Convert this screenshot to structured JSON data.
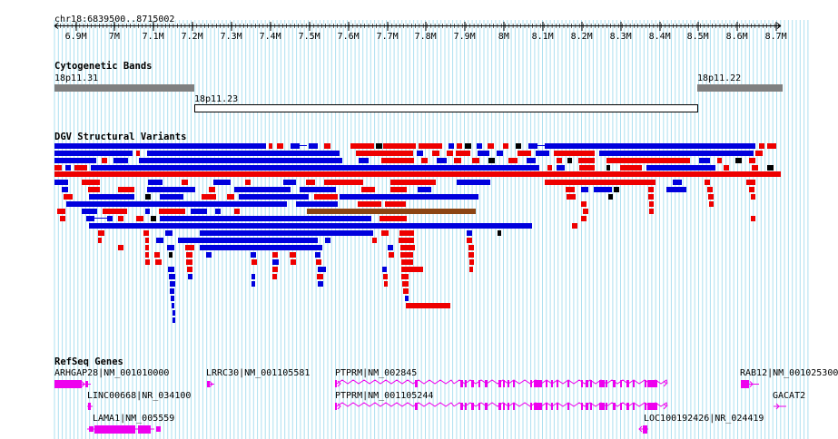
{
  "ruler": {
    "coord_label": "chr18:6839500..8715002",
    "ticks": [
      "6.9M",
      "7M",
      "7.1M",
      "7.2M",
      "7.3M",
      "7.4M",
      "7.5M",
      "7.6M",
      "7.7M",
      "7.8M",
      "7.9M",
      "8M",
      "8.1M",
      "8.2M",
      "8.3M",
      "8.4M",
      "8.5M",
      "8.6M",
      "8.7M"
    ]
  },
  "tracks": {
    "cytoband": {
      "title": "Cytogenetic Bands",
      "bands": [
        {
          "label": "18p11.31"
        },
        {
          "label": "18p11.23"
        },
        {
          "label": "18p11.22"
        }
      ]
    },
    "dgv": {
      "title": "DGV Structural Variants"
    },
    "refseq": {
      "title": "RefSeq Genes",
      "genes": [
        {
          "label": "ARHGAP28|NM_001010000"
        },
        {
          "label": "LINC00668|NR_034100"
        },
        {
          "label": "LAMA1|NM_005559"
        },
        {
          "label": "LRRC30|NM_001105581"
        },
        {
          "label": "PTPRM|NM_002845"
        },
        {
          "label": "PTPRM|NM_001105244"
        },
        {
          "label": "LOC100192426|NR_024419"
        },
        {
          "label": "RAB12|NM_001025300"
        },
        {
          "label": "GACAT2"
        }
      ]
    }
  },
  "colors": {
    "gain": "#ee0000",
    "loss": "#0000dd",
    "inversion": "#8b4513",
    "complex": "#000000",
    "gene": "#ee00ee",
    "grid": "#aee0f0",
    "band_gray": "#808080"
  }
}
